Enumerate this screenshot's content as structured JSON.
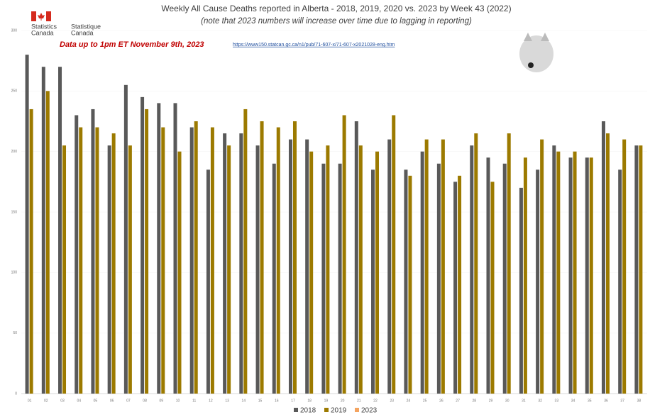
{
  "logo": {
    "en": [
      "Statistics",
      "Canada"
    ],
    "fr": [
      "Statistique",
      "Canada"
    ]
  },
  "chart_data": {
    "type": "bar",
    "title": "Weekly All Cause Deaths reported in Alberta - 2018, 2019, 2020 vs. 2023 by Week 43 (2022)",
    "subtitle": "(note that 2023 numbers will increase over time due to lagging in reporting)",
    "annotations": [
      "Data up to 1pm ET November 9th, 2023",
      "https://www150.statcan.gc.ca/n1/pub/71-607-x/71-607-x2021028-eng.htm"
    ],
    "categories": [
      "01",
      "02",
      "03",
      "04",
      "05",
      "06",
      "07",
      "08",
      "09",
      "10",
      "11",
      "12",
      "13",
      "14",
      "15",
      "16",
      "17",
      "18",
      "19",
      "20",
      "21",
      "22",
      "23",
      "24",
      "25",
      "26",
      "27",
      "28",
      "29",
      "30",
      "31",
      "32",
      "33",
      "34",
      "35",
      "36",
      "37",
      "38"
    ],
    "series": [
      {
        "name": "2018",
        "color": "#595959",
        "values": [
          280,
          270,
          270,
          230,
          235,
          205,
          255,
          245,
          240,
          240,
          220,
          185,
          215,
          215,
          205,
          190,
          210,
          210,
          190,
          190,
          225,
          185,
          210,
          185,
          200,
          190,
          175,
          205,
          195,
          190,
          170,
          185,
          205,
          195,
          195,
          225,
          185,
          205
        ]
      },
      {
        "name": "2019",
        "color": "#9c7a00",
        "values": [
          235,
          250,
          205,
          220,
          220,
          215,
          205,
          235,
          220,
          200,
          225,
          220,
          205,
          235,
          225,
          220,
          225,
          200,
          205,
          230,
          205,
          200,
          230,
          180,
          210,
          210,
          180,
          215,
          175,
          215,
          195,
          210,
          200,
          200,
          195,
          215,
          210,
          205
        ]
      },
      {
        "name": "2023",
        "color": "#f4a460",
        "values": [
          null,
          null,
          null,
          null,
          null,
          null,
          null,
          null,
          null,
          null,
          null,
          null,
          null,
          null,
          null,
          null,
          null,
          null,
          null,
          null,
          null,
          null,
          null,
          null,
          null,
          null,
          null,
          null,
          null,
          null,
          null,
          null,
          null,
          null,
          null,
          null,
          null,
          null
        ]
      }
    ],
    "ylim": [
      0,
      300
    ],
    "yticks": [
      0,
      50,
      100,
      150,
      200,
      250,
      300
    ],
    "grid": true,
    "legend": "bottom"
  }
}
